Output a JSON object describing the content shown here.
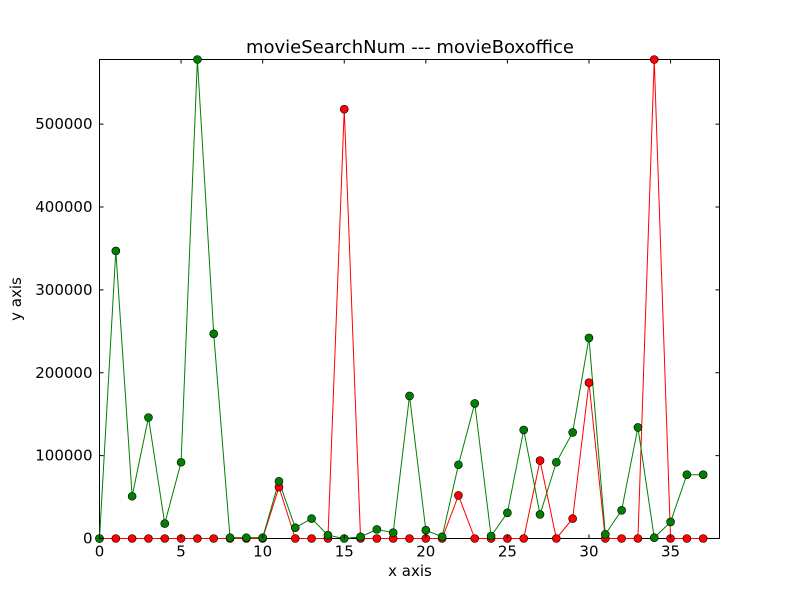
{
  "chart_data": {
    "type": "line",
    "title": "movieSearchNum --- movieBoxoffice",
    "xlabel": "x axis",
    "ylabel": "y axis",
    "xlim": [
      0,
      38
    ],
    "ylim": [
      0,
      578000
    ],
    "xticks": [
      0,
      5,
      10,
      15,
      20,
      25,
      30,
      35
    ],
    "yticks": [
      0,
      100000,
      200000,
      300000,
      400000,
      500000
    ],
    "grid": false,
    "x": [
      0,
      1,
      2,
      3,
      4,
      5,
      6,
      7,
      8,
      9,
      10,
      11,
      12,
      13,
      14,
      15,
      16,
      17,
      18,
      19,
      20,
      21,
      22,
      23,
      24,
      25,
      26,
      27,
      28,
      29,
      30,
      31,
      32,
      33,
      34,
      35,
      36,
      37
    ],
    "series": [
      {
        "color": "#ff0000",
        "marker_color": "#ff0000",
        "values": [
          0,
          0,
          0,
          0,
          0,
          0,
          0,
          0,
          0,
          0,
          0,
          62000,
          0,
          0,
          0,
          518000,
          0,
          0,
          0,
          0,
          0,
          0,
          52000,
          0,
          0,
          0,
          0,
          94000,
          0,
          24000,
          188000,
          0,
          0,
          0,
          578000,
          0,
          0,
          0
        ]
      },
      {
        "color": "#008000",
        "marker_color": "#008000",
        "values": [
          0,
          347000,
          51000,
          146000,
          18000,
          92000,
          578000,
          247000,
          1000,
          1000,
          1000,
          69000,
          13000,
          24000,
          4000,
          0,
          2000,
          11000,
          7000,
          172000,
          10000,
          2000,
          89000,
          163000,
          3000,
          31000,
          131000,
          29000,
          92000,
          128000,
          242000,
          5000,
          34000,
          134000,
          1000,
          20000,
          77000,
          77000
        ]
      }
    ]
  }
}
